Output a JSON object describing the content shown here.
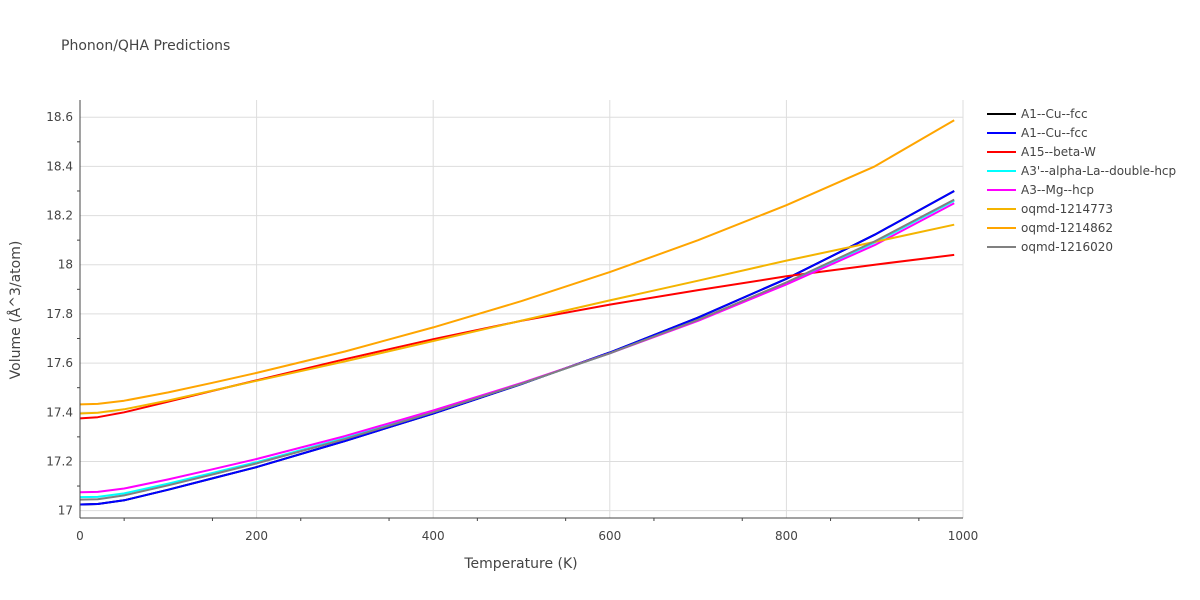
{
  "chart_data": {
    "type": "line",
    "title": "Phonon/QHA Predictions",
    "xlabel": "Temperature (K)",
    "ylabel": "Volume (Å^3/atom)",
    "xlim": [
      0,
      1000
    ],
    "ylim": [
      16.97,
      18.67
    ],
    "xticks": [
      0,
      200,
      400,
      600,
      800,
      1000
    ],
    "xtick_labels": [
      "0",
      "200",
      "400",
      "600",
      "800",
      "1000"
    ],
    "yticks": [
      17,
      17.2,
      17.4,
      17.6,
      17.8,
      18,
      18.2,
      18.4,
      18.6
    ],
    "ytick_labels": [
      "17",
      "17.2",
      "17.4",
      "17.6",
      "17.8",
      "18",
      "18.2",
      "18.4",
      "18.6"
    ],
    "grid": true,
    "legend_position": "right",
    "series": [
      {
        "name": "A1--Cu--fcc",
        "color": "#000000",
        "x": [
          0,
          20,
          50,
          100,
          150,
          200,
          300,
          400,
          500,
          600,
          700,
          800,
          900,
          990
        ],
        "y": [
          17.025,
          17.027,
          17.042,
          17.085,
          17.131,
          17.177,
          17.283,
          17.395,
          17.515,
          17.643,
          17.785,
          17.943,
          18.122,
          18.3
        ]
      },
      {
        "name": "A1--Cu--fcc",
        "color": "#0000ff",
        "x": [
          0,
          20,
          50,
          100,
          150,
          200,
          300,
          400,
          500,
          600,
          700,
          800,
          900,
          990
        ],
        "y": [
          17.025,
          17.027,
          17.042,
          17.085,
          17.131,
          17.177,
          17.283,
          17.395,
          17.515,
          17.643,
          17.785,
          17.943,
          18.122,
          18.3
        ]
      },
      {
        "name": "A15--beta-W",
        "color": "#ff0000",
        "x": [
          0,
          20,
          50,
          100,
          150,
          200,
          300,
          400,
          500,
          600,
          700,
          800,
          900,
          990
        ],
        "y": [
          17.375,
          17.38,
          17.4,
          17.443,
          17.487,
          17.53,
          17.616,
          17.697,
          17.772,
          17.838,
          17.897,
          17.953,
          18.0,
          18.04
        ]
      },
      {
        "name": "A3'--alpha-La--double-hcp",
        "color": "#00ffff",
        "x": [
          0,
          20,
          50,
          100,
          150,
          200,
          300,
          400,
          500,
          600,
          700,
          800,
          900,
          990
        ],
        "y": [
          17.055,
          17.056,
          17.07,
          17.11,
          17.153,
          17.197,
          17.295,
          17.402,
          17.517,
          17.64,
          17.775,
          17.925,
          18.09,
          18.26
        ]
      },
      {
        "name": "A3--Mg--hcp",
        "color": "#ff00ff",
        "x": [
          0,
          20,
          50,
          100,
          150,
          200,
          300,
          400,
          500,
          600,
          700,
          800,
          900,
          990
        ],
        "y": [
          17.075,
          17.076,
          17.09,
          17.127,
          17.168,
          17.21,
          17.303,
          17.407,
          17.519,
          17.64,
          17.772,
          17.92,
          18.08,
          18.25
        ]
      },
      {
        "name": "oqmd-1214773",
        "color": "#f4b400",
        "x": [
          0,
          20,
          50,
          100,
          150,
          200,
          300,
          400,
          500,
          600,
          700,
          800,
          900,
          990
        ],
        "y": [
          17.395,
          17.398,
          17.412,
          17.448,
          17.488,
          17.528,
          17.607,
          17.69,
          17.773,
          17.855,
          17.935,
          18.017,
          18.093,
          18.163
        ]
      },
      {
        "name": "oqmd-1214862",
        "color": "#ffa500",
        "x": [
          0,
          20,
          50,
          100,
          150,
          200,
          300,
          400,
          500,
          600,
          700,
          800,
          900,
          990
        ],
        "y": [
          17.432,
          17.434,
          17.447,
          17.481,
          17.52,
          17.56,
          17.647,
          17.745,
          17.852,
          17.97,
          18.1,
          18.242,
          18.4,
          18.588
        ]
      },
      {
        "name": "oqmd-1216020",
        "color": "#808080",
        "x": [
          0,
          20,
          50,
          100,
          150,
          200,
          300,
          400,
          500,
          600,
          700,
          800,
          900,
          990
        ],
        "y": [
          17.045,
          17.046,
          17.062,
          17.103,
          17.147,
          17.192,
          17.291,
          17.4,
          17.516,
          17.64,
          17.776,
          17.928,
          18.095,
          18.265
        ]
      }
    ]
  }
}
